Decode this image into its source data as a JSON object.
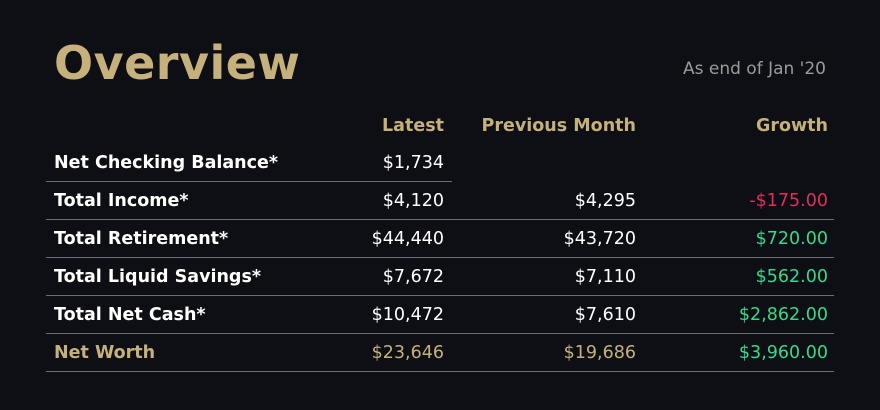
{
  "header": {
    "title": "Overview",
    "subtitle": "As end of Jan '20"
  },
  "columns": {
    "latest": "Latest",
    "previous": "Previous Month",
    "growth": "Growth"
  },
  "rows": [
    {
      "label": "Net Checking Balance*",
      "latest": "$1,734",
      "previous": "",
      "growth": ""
    },
    {
      "label": "Total Income*",
      "latest": "$4,120",
      "previous": "$4,295",
      "growth": "-$175.00"
    },
    {
      "label": "Total Retirement*",
      "latest": "$44,440",
      "previous": "$43,720",
      "growth": "$720.00"
    },
    {
      "label": "Total Liquid Savings*",
      "latest": "$7,672",
      "previous": "$7,110",
      "growth": "$562.00"
    },
    {
      "label": "Total Net Cash*",
      "latest": "$10,472",
      "previous": "$7,610",
      "growth": "$2,862.00"
    },
    {
      "label": "Net Worth",
      "latest": "$23,646",
      "previous": "$19,686",
      "growth": "$3,960.00"
    }
  ],
  "colors": {
    "background": "#0d0f15",
    "accent_gold": "#c6b07c",
    "negative": "#e0305a",
    "positive": "#38d98a"
  }
}
